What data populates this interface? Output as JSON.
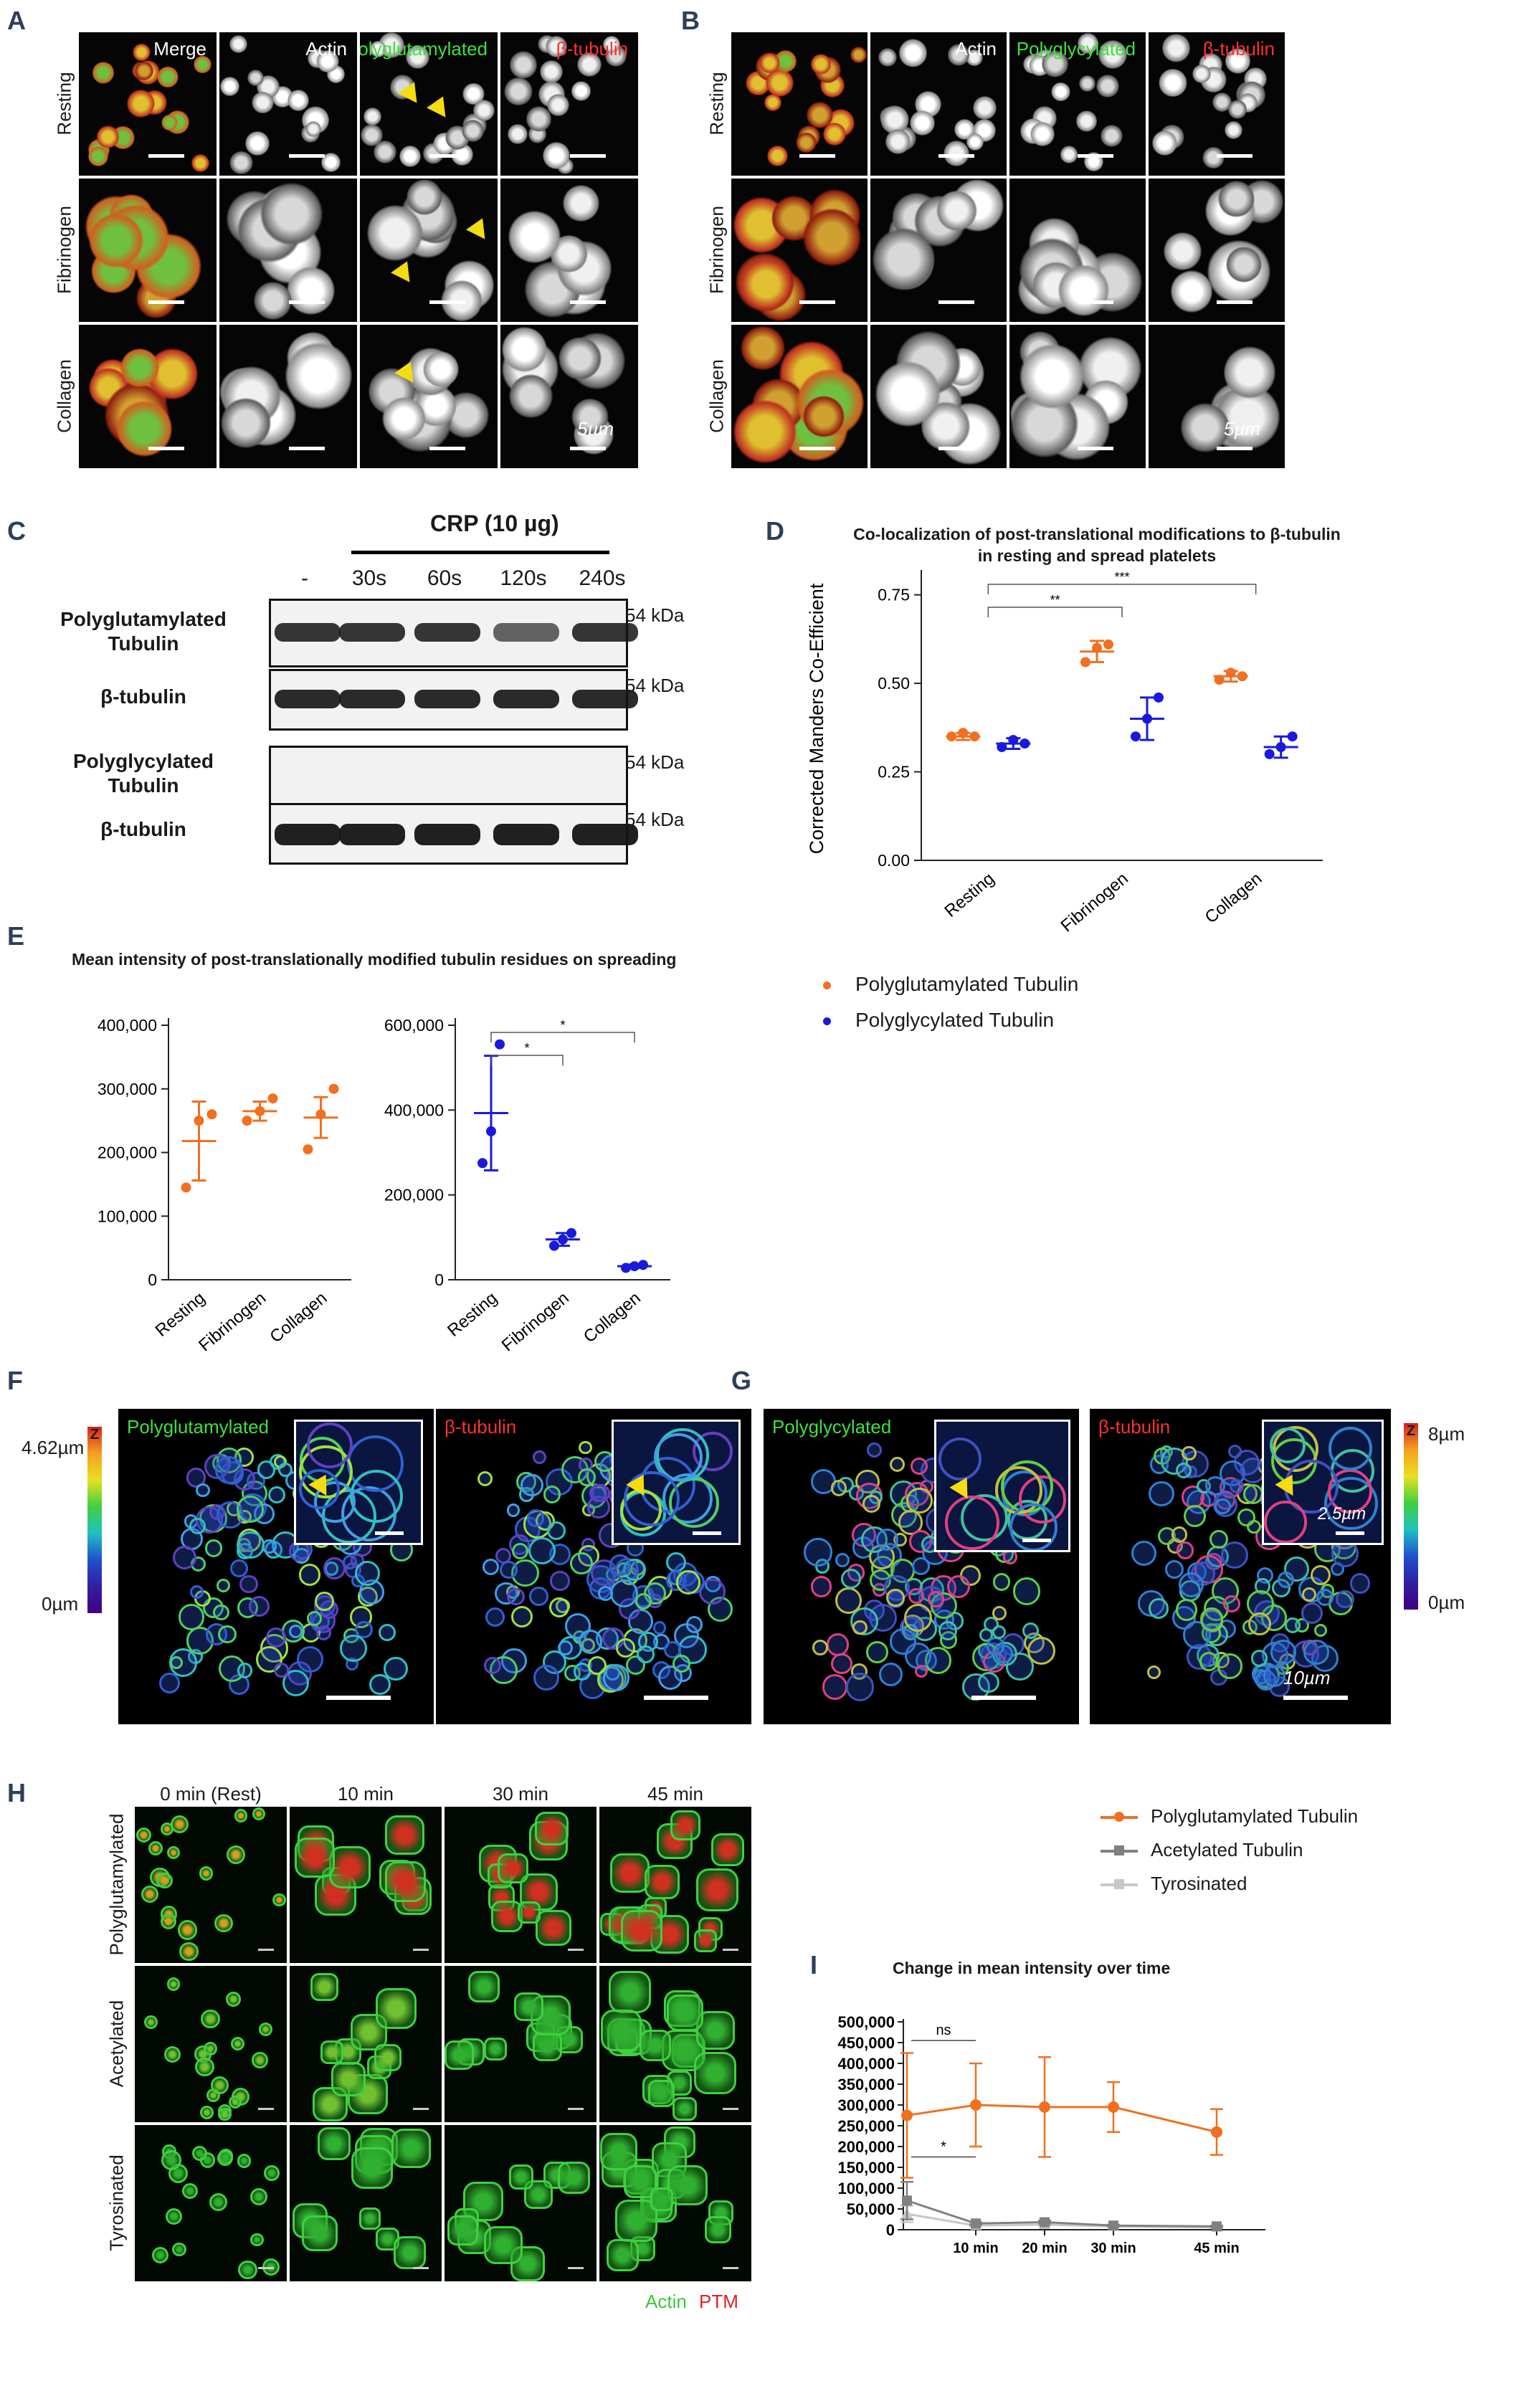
{
  "panels": {
    "A": {
      "letter": "A",
      "col_labels": [
        "Merge",
        "Actin",
        "Polyglutamylated",
        "β-tubulin"
      ],
      "row_labels": [
        "Resting",
        "Fibrinogen",
        "Collagen"
      ],
      "scale": "5µm"
    },
    "B": {
      "letter": "B",
      "col_labels": [
        "",
        "Actin",
        "Polyglycylated",
        "β-tubulin"
      ],
      "row_labels": [
        "Resting",
        "Fibrinogen",
        "Collagen"
      ],
      "scale": "5µm"
    },
    "C": {
      "letter": "C",
      "treatment": "CRP (10 µg)",
      "lanes": [
        "-",
        "30s",
        "60s",
        "120s",
        "240s"
      ],
      "blots": [
        {
          "label": "Polyglutamylated Tubulin",
          "kda": "54 kDa"
        },
        {
          "label": "β-tubulin",
          "kda": "54 kDa"
        },
        {
          "label": "Polyglycylated Tubulin",
          "kda": "54 kDa"
        },
        {
          "label": "β-tubulin",
          "kda": "54 kDa"
        }
      ]
    },
    "F": {
      "letter": "F",
      "labels": [
        "Polyglutamylated",
        "β-tubulin"
      ],
      "z_top": "4.62µm",
      "z_bottom": "0µm",
      "z": "Z"
    },
    "G": {
      "letter": "G",
      "labels": [
        "Polyglycylated",
        "β-tubulin"
      ],
      "z_top": "8µm",
      "z_bottom": "0µm",
      "z": "Z",
      "inset_scale": "2.5µm",
      "scale": "10µm"
    },
    "H": {
      "letter": "H",
      "col_labels": [
        "0 min (Rest)",
        "10 min",
        "30 min",
        "45 min"
      ],
      "row_labels": [
        "Polyglutamylated",
        "Acetylated",
        "Tyrosinated"
      ],
      "legend_actin": "Actin",
      "legend_ptm": "PTM"
    }
  },
  "chart_data": [
    {
      "id": "D",
      "letter": "D",
      "type": "scatter",
      "title": "Co-localization of post-translational modifications to β-tubulin in resting and spread platelets",
      "ylabel": "Corrected Manders Co-Efficient",
      "xlabel": "",
      "categories": [
        "Resting",
        "Fibrinogen",
        "Collagen"
      ],
      "yticks": [
        "0.00",
        "0.25",
        "0.50",
        "0.75"
      ],
      "ylim": [
        0,
        0.8
      ],
      "series": [
        {
          "name": "Polyglutamylated Tubulin",
          "color": "#f07020",
          "points": [
            [
              0.35,
              0.36,
              0.35
            ],
            [
              0.56,
              0.6,
              0.61
            ],
            [
              0.51,
              0.53,
              0.52
            ]
          ],
          "mean": [
            0.35,
            0.59,
            0.52
          ],
          "sd": [
            0.01,
            0.03,
            0.015
          ]
        },
        {
          "name": "Polyglycylated Tubulin",
          "color": "#1a1adc",
          "points": [
            [
              0.32,
              0.34,
              0.33
            ],
            [
              0.35,
              0.4,
              0.46
            ],
            [
              0.3,
              0.32,
              0.35
            ]
          ],
          "mean": [
            0.33,
            0.4,
            0.32
          ],
          "sd": [
            0.015,
            0.06,
            0.03
          ]
        }
      ],
      "significance": [
        {
          "from": 0,
          "to": 1,
          "label": "**"
        },
        {
          "from": 0,
          "to": 2,
          "label": "***"
        }
      ]
    },
    {
      "id": "E1",
      "letter": "E",
      "type": "scatter",
      "title": "Mean intensity of post-translationally modified tubulin residues on spreading",
      "categories": [
        "Resting",
        "Fibrinogen",
        "Collagen"
      ],
      "yticks": [
        "0",
        "100,000",
        "200,000",
        "300,000",
        "400,000"
      ],
      "ylim": [
        0,
        400000
      ],
      "series": [
        {
          "name": "Polyglutamylated Tubulin",
          "color": "#f07020",
          "points": [
            [
              145000,
              250000,
              260000
            ],
            [
              250000,
              265000,
              285000
            ],
            [
              205000,
              260000,
              300000
            ]
          ],
          "mean": [
            218000,
            265000,
            255000
          ],
          "sd": [
            62000,
            15000,
            32000
          ]
        }
      ]
    },
    {
      "id": "E2",
      "type": "scatter",
      "categories": [
        "Resting",
        "Fibrinogen",
        "Collagen"
      ],
      "yticks": [
        "0",
        "200,000",
        "400,000",
        "600,000"
      ],
      "ylim": [
        0,
        600000
      ],
      "series": [
        {
          "name": "Polyglycylated Tubulin",
          "color": "#1a1adc",
          "points": [
            [
              275000,
              350000,
              555000
            ],
            [
              80000,
              95000,
              110000
            ],
            [
              28000,
              32000,
              35000
            ]
          ],
          "mean": [
            393000,
            95000,
            32000
          ],
          "sd": [
            135000,
            15000,
            4000
          ]
        }
      ],
      "significance": [
        {
          "from": 0,
          "to": 1,
          "label": "*"
        },
        {
          "from": 0,
          "to": 2,
          "label": "*"
        }
      ]
    },
    {
      "id": "I",
      "letter": "I",
      "type": "line",
      "title": "Change in mean intensity over time",
      "x": [
        0,
        10,
        20,
        30,
        45
      ],
      "xticks": [
        "10 min",
        "20 min",
        "30 min",
        "45 min"
      ],
      "yticks": [
        "0",
        "50,000",
        "100,000",
        "150,000",
        "200,000",
        "250,000",
        "300,000",
        "350,000",
        "400,000",
        "450,000",
        "500,000"
      ],
      "ylim": [
        0,
        500000
      ],
      "series": [
        {
          "name": "Polyglutamylated Tubulin",
          "color": "#f07020",
          "values": [
            275000,
            300000,
            295000,
            295000,
            235000
          ],
          "err": [
            150000,
            100000,
            120000,
            60000,
            55000
          ]
        },
        {
          "name": "Acetylated Tubulin",
          "color": "#808080",
          "values": [
            70000,
            15000,
            18000,
            10000,
            8000
          ],
          "err": [
            45000,
            3000,
            4000,
            2000,
            2000
          ]
        },
        {
          "name": "Tyrosinated",
          "color": "#c8c8c8",
          "values": [
            38000,
            10000,
            12000,
            8000,
            6000
          ],
          "err": [
            20000,
            2000,
            2000,
            2000,
            2000
          ]
        }
      ],
      "significance": [
        {
          "from": 0,
          "to": 10,
          "label": "ns",
          "at": "upper"
        },
        {
          "from": 0,
          "to": 10,
          "label": "*",
          "at": "lower"
        }
      ]
    }
  ]
}
